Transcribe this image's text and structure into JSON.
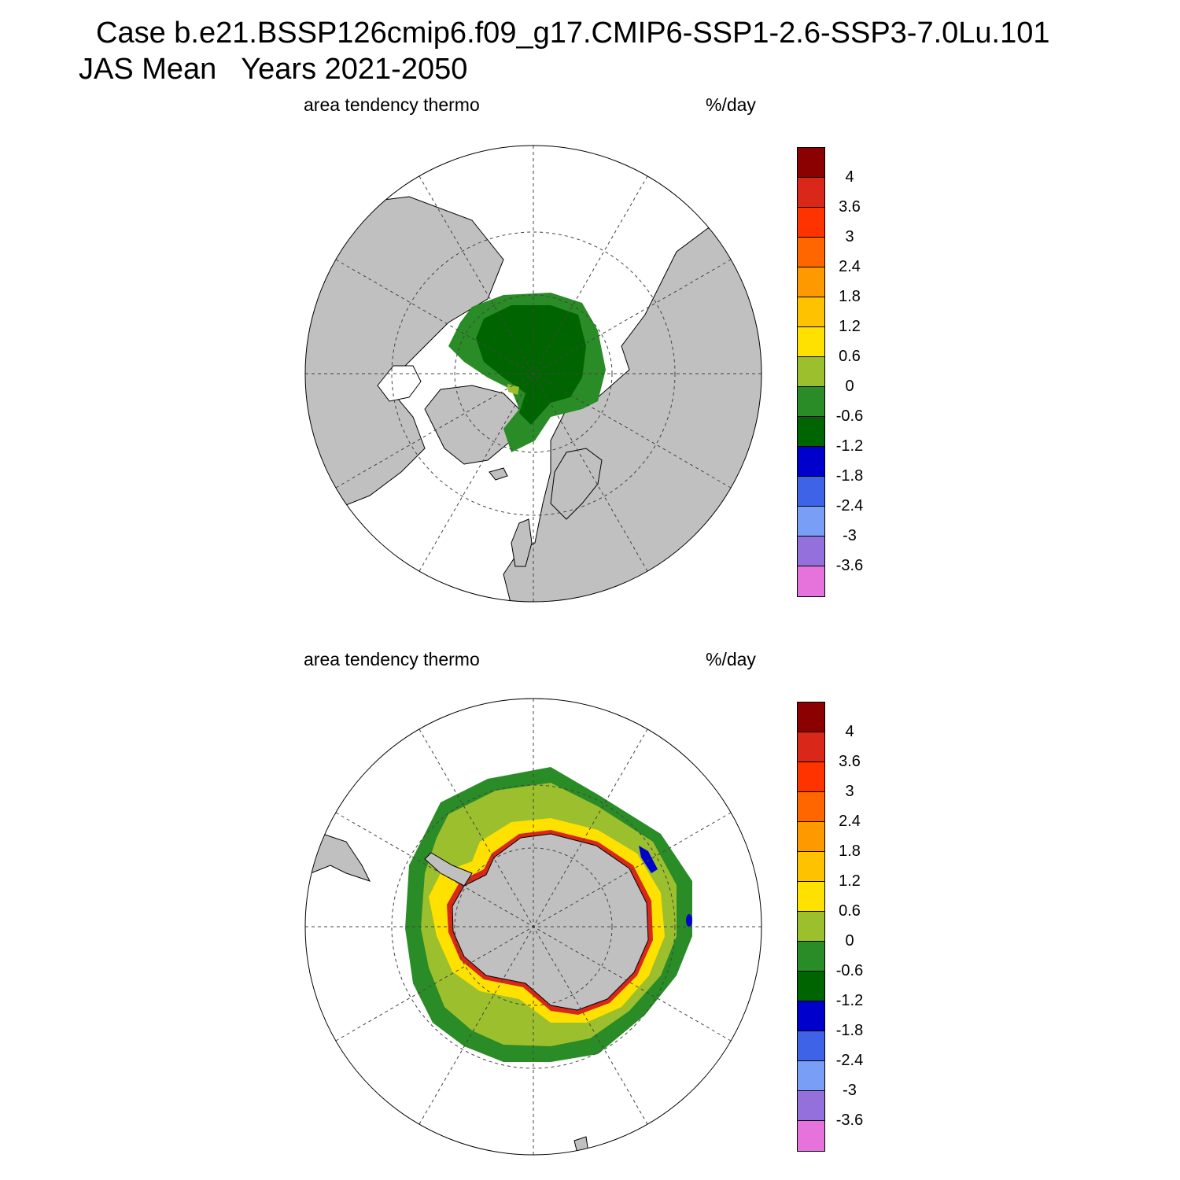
{
  "title": {
    "line1": "Case b.e21.BSSP126cmip6.f09_g17.CMIP6-SSP1-2.6-SSP3-7.0Lu.101",
    "line2": "JAS Mean   Years 2021-2050"
  },
  "panels": [
    {
      "left_label": "area tendency thermo",
      "right_label": "%/day",
      "hemisphere": "north"
    },
    {
      "left_label": "area tendency thermo",
      "right_label": "%/day",
      "hemisphere": "south"
    }
  ],
  "colorbar": {
    "labels": [
      "4",
      "3.6",
      "3",
      "2.4",
      "1.8",
      "1.2",
      "0.6",
      "0",
      "-0.6",
      "-1.2",
      "-1.8",
      "-2.4",
      "-3",
      "-3.6"
    ],
    "colors": [
      "#8b0000",
      "#d9281a",
      "#ff3300",
      "#ff6600",
      "#ff9900",
      "#ffc200",
      "#ffe100",
      "#9cbf2e",
      "#2a8c26",
      "#006400",
      "#0000cd",
      "#3e63e6",
      "#789ef5",
      "#9370db",
      "#e673dc"
    ]
  },
  "palette": {
    "land": "#c0c0c0",
    "ocean": "#ffffff",
    "grid": "#444444"
  }
}
